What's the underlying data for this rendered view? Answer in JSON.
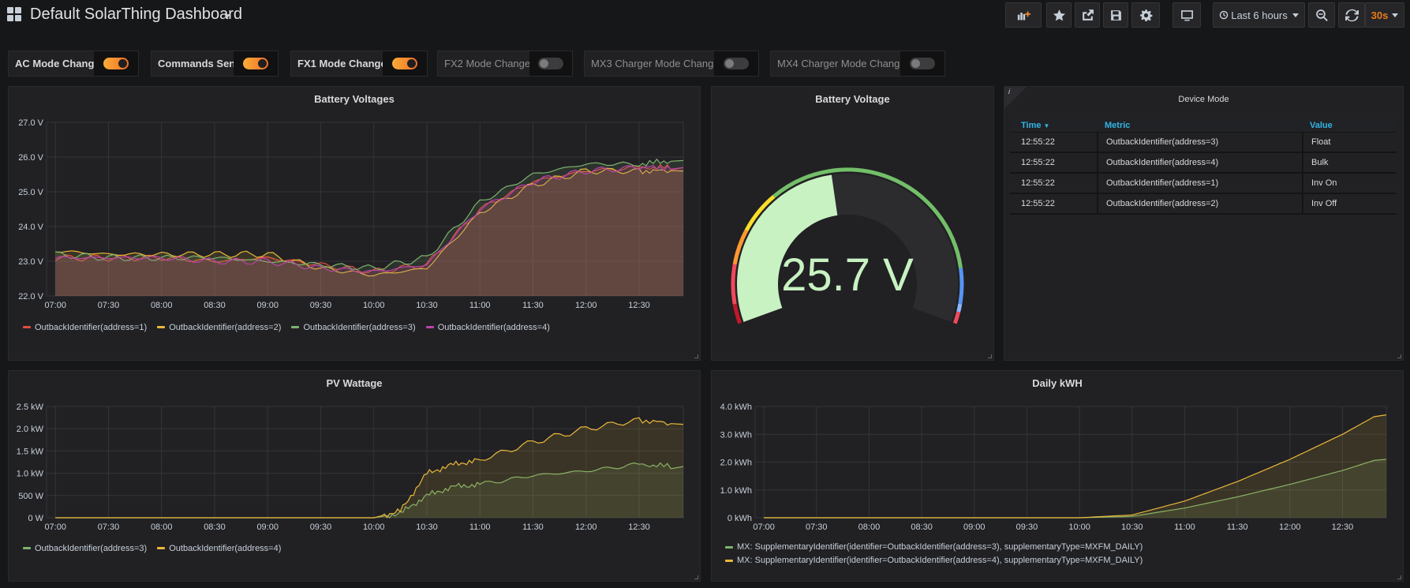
{
  "dashboard": {
    "title": "Default SolarThing Dashboard"
  },
  "toolbar": {
    "time_range": "Last 6 hours",
    "refresh_interval": "30s",
    "icons": [
      "add-panel-icon",
      "star-icon",
      "share-icon",
      "save-icon",
      "gear-icon",
      "tv-mode-icon",
      "clock-icon",
      "zoom-out-icon",
      "refresh-icon"
    ]
  },
  "variables": [
    {
      "label": "AC Mode Change",
      "on": true
    },
    {
      "label": "Commands Sent",
      "on": true
    },
    {
      "label": "FX1 Mode Change",
      "on": true
    },
    {
      "label": "FX2 Mode Change",
      "on": false
    },
    {
      "label": "MX3 Charger Mode Change",
      "on": false
    },
    {
      "label": "MX4 Charger Mode Change",
      "on": false
    }
  ],
  "colors": {
    "red": "#e24d42",
    "yellow": "#eab839",
    "green": "#7eb26d",
    "purple": "#ba43a9",
    "gauge_fill": "#c8f2c2",
    "accent": "#eb7b18"
  },
  "battery_voltages": {
    "title": "Battery Voltages",
    "legend": [
      "OutbackIdentifier(address=1)",
      "OutbackIdentifier(address=2)",
      "OutbackIdentifier(address=3)",
      "OutbackIdentifier(address=4)"
    ]
  },
  "battery_voltage_gauge": {
    "title": "Battery Voltage",
    "value": 25.7,
    "value_text": "25.7 V",
    "min": 22,
    "max": 30
  },
  "device_mode": {
    "title": "Device Mode",
    "info": "i",
    "columns": [
      "Time",
      "Metric",
      "Value"
    ],
    "rows": [
      {
        "time": "12:55:22",
        "metric": "OutbackIdentifier(address=3)",
        "value": "Float"
      },
      {
        "time": "12:55:22",
        "metric": "OutbackIdentifier(address=4)",
        "value": "Bulk"
      },
      {
        "time": "12:55:22",
        "metric": "OutbackIdentifier(address=1)",
        "value": "Inv On"
      },
      {
        "time": "12:55:22",
        "metric": "OutbackIdentifier(address=2)",
        "value": "Inv Off"
      }
    ]
  },
  "pv_wattage": {
    "title": "PV Wattage",
    "legend": [
      "OutbackIdentifier(address=3)",
      "OutbackIdentifier(address=4)"
    ]
  },
  "daily_kwh": {
    "title": "Daily kWH",
    "legend": [
      "MX: SupplementaryIdentifier(identifier=OutbackIdentifier(address=3), supplementaryType=MXFM_DAILY)",
      "MX: SupplementaryIdentifier(identifier=OutbackIdentifier(address=4), supplementaryType=MXFM_DAILY)"
    ]
  },
  "chart_data": [
    {
      "type": "line",
      "title": "Battery Voltages",
      "x": [
        "07:00",
        "07:30",
        "08:00",
        "08:30",
        "09:00",
        "09:30",
        "10:00",
        "10:30",
        "11:00",
        "11:30",
        "12:00",
        "12:30",
        "12:50"
      ],
      "xticks": [
        "07:00",
        "07:30",
        "08:00",
        "08:30",
        "09:00",
        "09:30",
        "10:00",
        "10:30",
        "11:00",
        "11:30",
        "12:00",
        "12:30"
      ],
      "yticks": [
        "22.0 V",
        "23.0 V",
        "24.0 V",
        "25.0 V",
        "26.0 V",
        "27.0 V"
      ],
      "ylim": [
        22,
        27
      ],
      "unit": "V",
      "series": [
        {
          "name": "OutbackIdentifier(address=1)",
          "values": [
            23.1,
            23.1,
            23.1,
            23.0,
            23.1,
            22.9,
            22.7,
            22.9,
            24.5,
            25.3,
            25.6,
            25.7,
            25.7
          ]
        },
        {
          "name": "OutbackIdentifier(address=2)",
          "values": [
            23.3,
            23.2,
            23.2,
            23.2,
            23.2,
            22.8,
            22.6,
            22.8,
            24.4,
            25.2,
            25.6,
            25.6,
            25.6
          ]
        },
        {
          "name": "OutbackIdentifier(address=3)",
          "values": [
            23.2,
            23.1,
            23.1,
            23.1,
            23.0,
            22.9,
            22.8,
            23.1,
            24.7,
            25.5,
            25.8,
            25.8,
            25.9
          ]
        },
        {
          "name": "OutbackIdentifier(address=4)",
          "values": [
            23.1,
            23.1,
            23.1,
            23.0,
            23.0,
            22.8,
            22.7,
            22.9,
            24.5,
            25.3,
            25.6,
            25.7,
            25.7
          ]
        }
      ]
    },
    {
      "type": "area",
      "title": "PV Wattage",
      "x": [
        "07:00",
        "07:30",
        "08:00",
        "08:30",
        "09:00",
        "09:30",
        "10:00",
        "10:15",
        "10:30",
        "10:45",
        "11:00",
        "11:30",
        "12:00",
        "12:30",
        "12:50"
      ],
      "xticks": [
        "07:00",
        "07:30",
        "08:00",
        "08:30",
        "09:00",
        "09:30",
        "10:00",
        "10:30",
        "11:00",
        "11:30",
        "12:00",
        "12:30"
      ],
      "yticks": [
        "0 W",
        "500 W",
        "1.0 kW",
        "1.5 kW",
        "2.0 kW",
        "2.5 kW"
      ],
      "ylim": [
        0,
        2500
      ],
      "unit": "W",
      "series": [
        {
          "name": "OutbackIdentifier(address=3)",
          "values": [
            0,
            0,
            0,
            0,
            0,
            0,
            0,
            100,
            500,
            700,
            750,
            950,
            1050,
            1200,
            1150
          ]
        },
        {
          "name": "OutbackIdentifier(address=4)",
          "values": [
            0,
            0,
            0,
            0,
            0,
            0,
            0,
            150,
            1000,
            1200,
            1300,
            1700,
            2000,
            2200,
            2100
          ]
        }
      ]
    },
    {
      "type": "area",
      "title": "Daily kWH",
      "x": [
        "07:00",
        "07:30",
        "08:00",
        "08:30",
        "09:00",
        "09:30",
        "10:00",
        "10:30",
        "11:00",
        "11:30",
        "12:00",
        "12:30",
        "12:50"
      ],
      "xticks": [
        "07:00",
        "07:30",
        "08:00",
        "08:30",
        "09:00",
        "09:30",
        "10:00",
        "10:30",
        "11:00",
        "11:30",
        "12:00",
        "12:30"
      ],
      "yticks": [
        "0 kWh",
        "1.0 kWh",
        "2.0 kWh",
        "3.0 kWh",
        "4.0 kWh"
      ],
      "ylim": [
        0,
        4
      ],
      "unit": "kWh",
      "series": [
        {
          "name": "MX: SupplementaryIdentifier(identifier=OutbackIdentifier(address=3), supplementaryType=MXFM_DAILY)",
          "values": [
            0,
            0,
            0,
            0,
            0,
            0,
            0,
            0.05,
            0.35,
            0.75,
            1.2,
            1.7,
            2.1
          ]
        },
        {
          "name": "MX: SupplementaryIdentifier(identifier=OutbackIdentifier(address=4), supplementaryType=MXFM_DAILY)",
          "values": [
            0,
            0,
            0,
            0,
            0,
            0,
            0,
            0.1,
            0.6,
            1.3,
            2.1,
            3.0,
            3.7
          ]
        }
      ]
    }
  ]
}
